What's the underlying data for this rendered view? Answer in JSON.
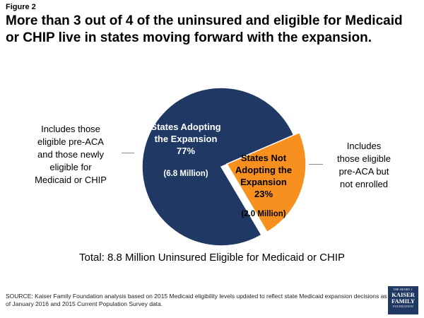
{
  "figure_label": "Figure 2",
  "title_lines": [
    "More than 3 out of 4 of the uninsured and eligible for Medicaid",
    "or CHIP live in states moving forward with the expansion."
  ],
  "chart_data": {
    "type": "pie",
    "slices": [
      {
        "label_lines": [
          "States Adopting",
          "the Expansion",
          "77%"
        ],
        "value": 77,
        "count": "(6.8 Million)",
        "color": "#1f3864",
        "text_color": "#ffffff"
      },
      {
        "label_lines": [
          "States Not",
          "Adopting the",
          "Expansion",
          "23%"
        ],
        "value": 23,
        "count": "(2.0 Million)",
        "color": "#f7901e",
        "text_color": "#000000"
      }
    ]
  },
  "annotations": {
    "left_lines": [
      "Includes those",
      "eligible pre-ACA",
      "and those newly",
      "eligible for",
      "Medicaid or CHIP"
    ],
    "right_lines": [
      "Includes",
      "those eligible",
      "pre-ACA but",
      "not enrolled"
    ]
  },
  "total": "Total: 8.8 Million Uninsured Eligible for Medicaid or CHIP",
  "source": "SOURCE: Kaiser Family Foundation analysis based on 2015 Medicaid eligibility levels updated to reflect state Medicaid expansion decisions as of January 2016 and 2015 Current Population Survey data.",
  "logo": {
    "top": "THE HENRY J.",
    "line1": "KAISER",
    "line2": "FAMILY",
    "bottom": "FOUNDATION"
  }
}
